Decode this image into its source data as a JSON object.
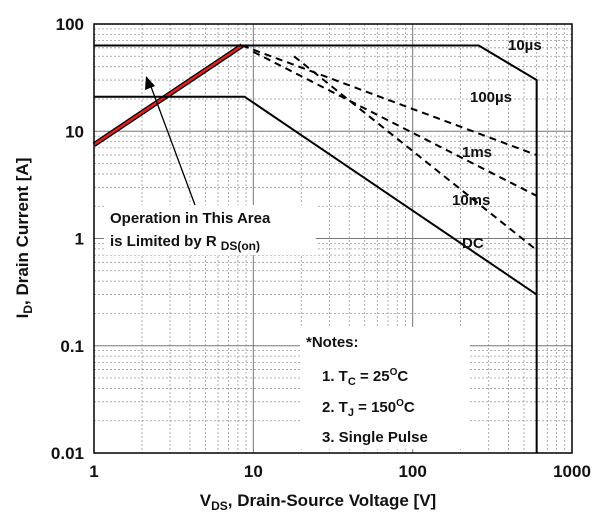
{
  "chart_data": {
    "type": "line",
    "ylabel": [
      "I",
      "D",
      ", Drain Current [A]"
    ],
    "xlabel": [
      "V",
      "DS",
      ", Drain-Source Voltage [V]"
    ],
    "log_x": true,
    "log_y": true,
    "grid": true,
    "xlim": [
      1,
      1000
    ],
    "xticks": [
      1,
      10,
      100,
      1000
    ],
    "ylim": [
      0.01,
      100
    ],
    "yticks": [
      0.01,
      0.1,
      1,
      10,
      100
    ],
    "series": [
      {
        "color": "#e02020",
        "outline": "#000000",
        "dash": false,
        "x": [
          1,
          8.5
        ],
        "values": [
          7.5,
          63
        ]
      },
      {
        "name": "10µs",
        "color": "#000000",
        "dash": false,
        "x": [
          1,
          260,
          600,
          600
        ],
        "values": [
          63,
          63,
          30,
          0.01
        ]
      },
      {
        "name": "100µs",
        "color": "#000000",
        "dash": true,
        "x": [
          8.5,
          600
        ],
        "values": [
          63,
          6
        ]
      },
      {
        "name": "1ms",
        "color": "#000000",
        "dash": true,
        "x": [
          10,
          600
        ],
        "values": [
          55,
          2.5
        ]
      },
      {
        "name": "10ms",
        "color": "#000000",
        "dash": true,
        "x": [
          18,
          600
        ],
        "values": [
          50,
          0.78
        ]
      },
      {
        "name": "DC",
        "color": "#000000",
        "dash": false,
        "x": [
          1,
          8.8,
          600
        ],
        "values": [
          21,
          21,
          0.3
        ]
      }
    ],
    "annotation": [
      "Operation in This Area",
      "is Limited by R",
      "DS(on)"
    ],
    "notes": {
      "title": "*Notes:",
      "items": [
        [
          "1. T",
          "C",
          " = 25",
          "O",
          "C"
        ],
        [
          "2. T",
          "J",
          " = 150",
          "O",
          "C"
        ],
        [
          "3. Single Pulse"
        ]
      ]
    }
  }
}
